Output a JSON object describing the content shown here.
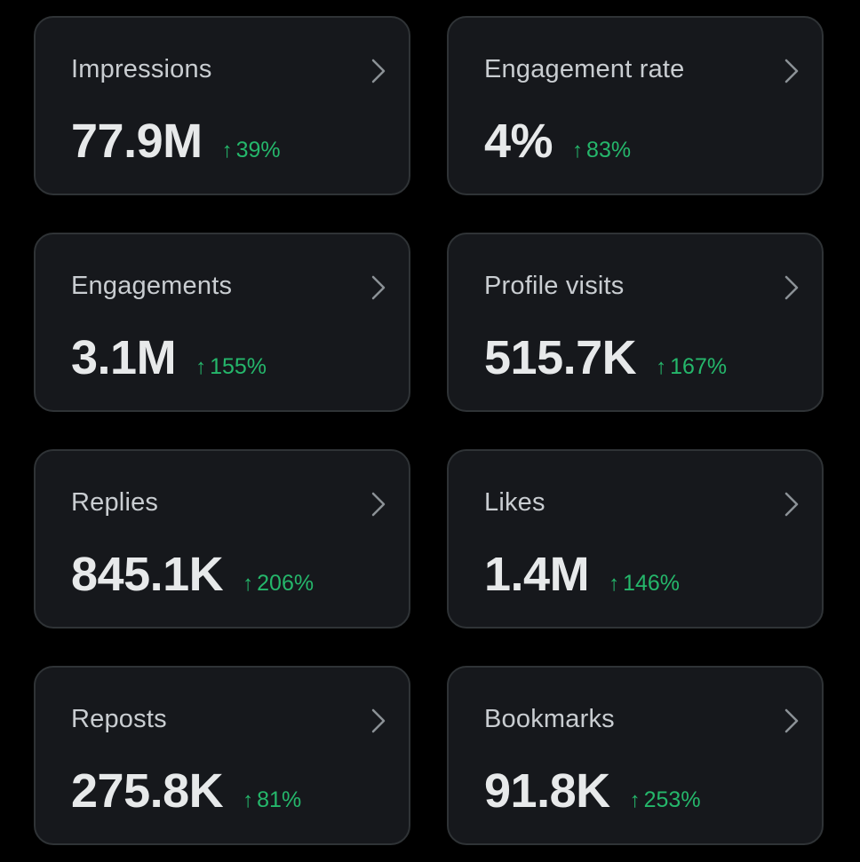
{
  "colors": {
    "background": "#000000",
    "card": "#16181c",
    "card_border": "#2f3336",
    "label": "#c9cdd1",
    "value": "#e7e9ea",
    "positive": "#25b76b",
    "chevron": "#8b9196"
  },
  "cards": [
    {
      "label": "Impressions",
      "value": "77.9M",
      "change_arrow": "↑",
      "change": "39%"
    },
    {
      "label": "Engagement rate",
      "value": "4%",
      "change_arrow": "↑",
      "change": "83%"
    },
    {
      "label": "Engagements",
      "value": "3.1M",
      "change_arrow": "↑",
      "change": "155%"
    },
    {
      "label": "Profile visits",
      "value": "515.7K",
      "change_arrow": "↑",
      "change": "167%"
    },
    {
      "label": "Replies",
      "value": "845.1K",
      "change_arrow": "↑",
      "change": "206%"
    },
    {
      "label": "Likes",
      "value": "1.4M",
      "change_arrow": "↑",
      "change": "146%"
    },
    {
      "label": "Reposts",
      "value": "275.8K",
      "change_arrow": "↑",
      "change": "81%"
    },
    {
      "label": "Bookmarks",
      "value": "91.8K",
      "change_arrow": "↑",
      "change": "253%"
    }
  ]
}
